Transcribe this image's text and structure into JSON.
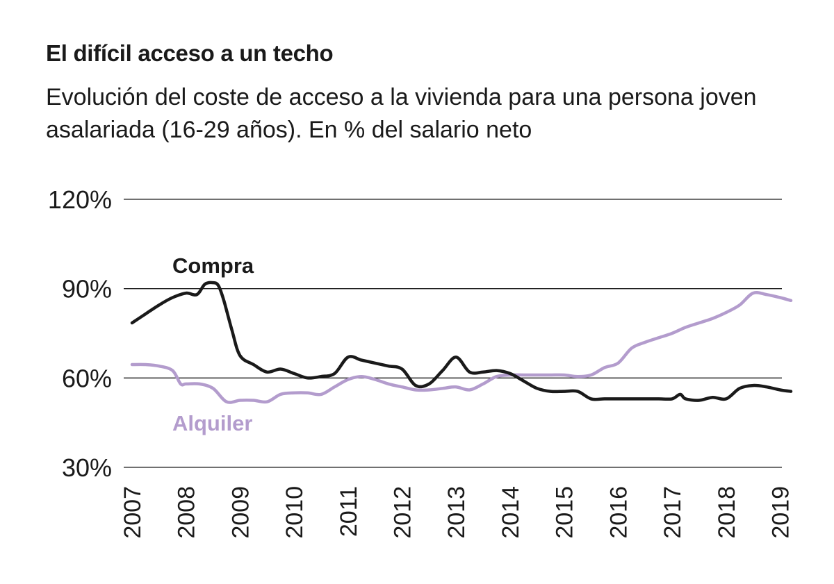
{
  "title": "El difícil acceso a un techo",
  "subtitle": "Evolución del coste de acceso a la vivienda para una persona joven asalariada (16-29 años). En % del salario neto",
  "colors": {
    "compra": "#1a1a1a",
    "alquiler": "#b39ccd",
    "grid": "#1a1a1a"
  },
  "chart_data": {
    "type": "line",
    "title": "El difícil acceso a un techo",
    "subtitle": "Evolución del coste de acceso a la vivienda para una persona joven asalariada (16-29 años). En % del salario neto",
    "ylim": [
      30,
      120
    ],
    "yticks": [
      30,
      60,
      90,
      120
    ],
    "ytick_labels": [
      "30%",
      "60%",
      "90%",
      "120%"
    ],
    "xlim": [
      2007,
      2019.2
    ],
    "xticks": [
      2007,
      2008,
      2009,
      2010,
      2011,
      2012,
      2013,
      2014,
      2015,
      2016,
      2017,
      2018,
      2019
    ],
    "xtick_labels": [
      "2007",
      "2008",
      "2009",
      "2010",
      "2011",
      "2012",
      "2013",
      "2014",
      "2015",
      "2016",
      "2017",
      "2018",
      "2019"
    ],
    "grid": "horizontal",
    "series": [
      {
        "name": "Compra",
        "x": [
          2007.0,
          2007.25,
          2007.5,
          2007.75,
          2008.0,
          2008.2,
          2008.35,
          2008.5,
          2008.6,
          2008.7,
          2008.85,
          2009.0,
          2009.25,
          2009.5,
          2009.75,
          2010.0,
          2010.25,
          2010.5,
          2010.75,
          2011.0,
          2011.25,
          2011.5,
          2011.75,
          2012.0,
          2012.25,
          2012.5,
          2012.75,
          2013.0,
          2013.25,
          2013.5,
          2013.75,
          2014.0,
          2014.25,
          2014.5,
          2014.75,
          2015.0,
          2015.25,
          2015.5,
          2015.75,
          2016.0,
          2016.25,
          2016.5,
          2016.75,
          2017.0,
          2017.15,
          2017.25,
          2017.5,
          2017.75,
          2018.0,
          2018.25,
          2018.5,
          2018.75,
          2019.0,
          2019.2
        ],
        "values": [
          78.5,
          81.5,
          84.5,
          87.0,
          88.5,
          88.0,
          91.5,
          92.0,
          91.0,
          86.0,
          76.0,
          67.5,
          64.5,
          62.0,
          63.0,
          61.5,
          60.0,
          60.5,
          61.5,
          67.0,
          66.0,
          65.0,
          64.0,
          63.0,
          57.5,
          58.0,
          62.5,
          67.0,
          62.0,
          62.0,
          62.5,
          61.5,
          59.0,
          56.5,
          55.5,
          55.5,
          55.5,
          53.0,
          53.0,
          53.0,
          53.0,
          53.0,
          53.0,
          53.0,
          54.5,
          53.0,
          52.5,
          53.5,
          53.0,
          56.5,
          57.5,
          57.0,
          56.0,
          55.5
        ]
      },
      {
        "name": "Alquiler",
        "x": [
          2007.0,
          2007.25,
          2007.5,
          2007.75,
          2007.9,
          2008.0,
          2008.25,
          2008.5,
          2008.75,
          2009.0,
          2009.25,
          2009.5,
          2009.75,
          2010.0,
          2010.25,
          2010.5,
          2010.75,
          2011.0,
          2011.25,
          2011.5,
          2011.75,
          2012.0,
          2012.25,
          2012.5,
          2012.75,
          2013.0,
          2013.25,
          2013.5,
          2013.75,
          2014.0,
          2014.25,
          2014.5,
          2014.75,
          2015.0,
          2015.25,
          2015.5,
          2015.75,
          2016.0,
          2016.25,
          2016.5,
          2016.75,
          2017.0,
          2017.25,
          2017.5,
          2017.75,
          2018.0,
          2018.25,
          2018.5,
          2018.75,
          2019.0,
          2019.2
        ],
        "values": [
          64.5,
          64.5,
          64.0,
          62.5,
          58.0,
          58.0,
          58.0,
          56.5,
          52.0,
          52.5,
          52.5,
          52.0,
          54.5,
          55.0,
          55.0,
          54.5,
          57.0,
          59.5,
          60.5,
          59.5,
          58.0,
          57.0,
          56.0,
          56.0,
          56.5,
          57.0,
          56.0,
          58.0,
          60.5,
          61.0,
          61.0,
          61.0,
          61.0,
          61.0,
          60.5,
          61.0,
          63.5,
          65.0,
          70.0,
          72.0,
          73.5,
          75.0,
          77.0,
          78.5,
          80.0,
          82.0,
          84.5,
          88.5,
          88.0,
          87.0,
          86.0
        ]
      }
    ],
    "series_labels": [
      "Compra",
      "Alquiler"
    ]
  }
}
